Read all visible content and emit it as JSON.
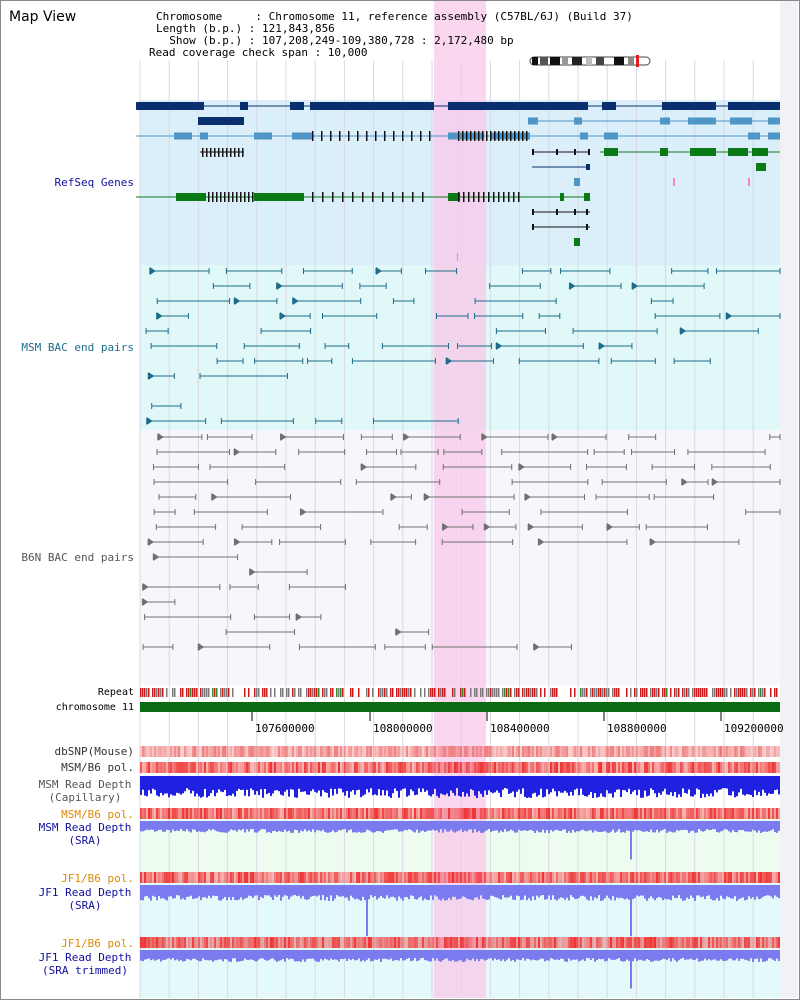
{
  "header": {
    "title": "Map View",
    "info_lines": [
      "Chromosome     : Chromosome 11, reference assembly (C57BL/6J) (Build 37)",
      "Length (b.p.) : 121,843,856",
      "  Show (b.p.) : 107,208,249-109,380,728 : 2,172,480 bp",
      "Read coverage check span : 10,000"
    ]
  },
  "colors": {
    "refseq_bg": "#dbeffa",
    "msm_bg": "#e0f8f8",
    "b6n_bg": "#f7f7fb",
    "highlight": "#f9c8ea",
    "refseq_dark": "#0a2f6e",
    "refseq_mid": "#4f96c7",
    "refseq_green": "#0a7a14",
    "msm_line": "#1d6c8a",
    "b6n_line": "#707070",
    "chromosome_bar": "#0b6b12",
    "snp": "#ef7a7a",
    "pol_red": "#ee3333",
    "capillary_blue": "#2020e0",
    "sra_blue": "#7b7bf0",
    "sra_bg": "#eefcf0",
    "jf1_bg": "#e4fafa"
  },
  "tracks": {
    "refseq_genes": "RefSeq Genes",
    "msm_bac": "MSM BAC end pairs",
    "b6n_bac": "B6N BAC end pairs",
    "repeat": "Repeat",
    "chromosome": "chromosome 11",
    "dbsnp": "dbSNP(Mouse)",
    "msm_b6_pol_1": "MSM/B6 pol.",
    "msm_read_depth_cap_1": "MSM Read Depth",
    "msm_read_depth_cap_2": "(Capillary)",
    "msm_b6_pol_2": "MSM/B6 pol.",
    "msm_read_depth_sra_1": "MSM Read Depth",
    "msm_read_depth_sra_2": "(SRA)",
    "jf1_b6_pol_1": "JF1/B6 pol.",
    "jf1_read_depth_sra_1": "JF1 Read Depth",
    "jf1_read_depth_sra_2": "(SRA)",
    "jf1_b6_pol_2": "JF1/B6 pol.",
    "jf1_read_depth_trim_1": "JF1 Read Depth",
    "jf1_read_depth_trim_2": "(SRA trimmed)"
  },
  "axis": {
    "ticks": [
      "107600000",
      "108000000",
      "108400000",
      "108800000",
      "109200000"
    ]
  }
}
